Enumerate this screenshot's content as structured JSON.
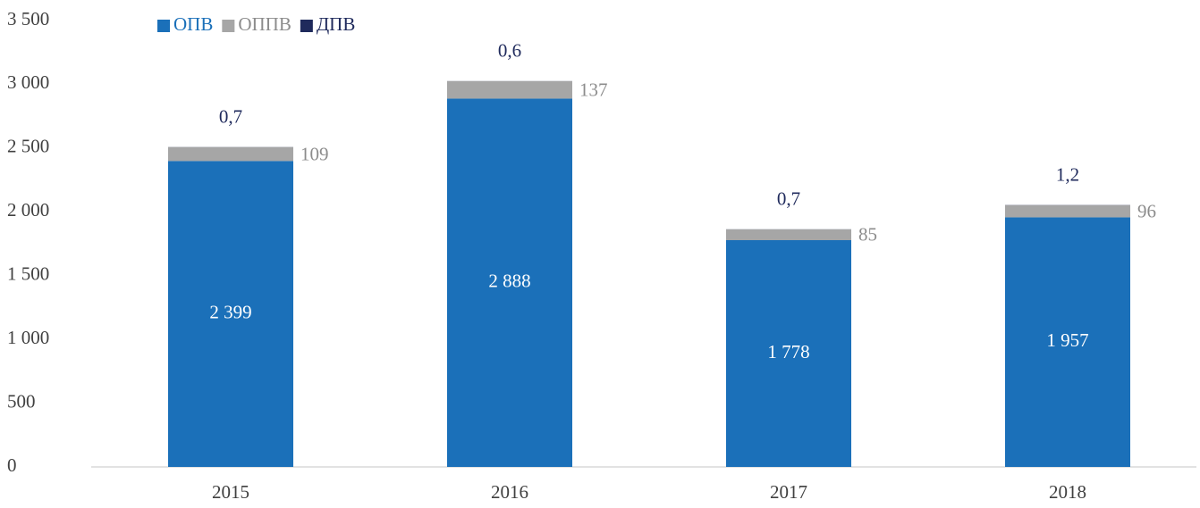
{
  "chart_data": {
    "type": "stacked_bar",
    "categories": [
      "2015",
      "2016",
      "2017",
      "2018"
    ],
    "series": [
      {
        "name": "ОПВ",
        "color": "#1b70b9",
        "values": [
          2399,
          2888,
          1778,
          1957
        ],
        "value_labels": [
          "2 399",
          "2 888",
          "1 778",
          "1 957"
        ]
      },
      {
        "name": "ОППВ",
        "color": "#a6a6a6",
        "values": [
          109,
          137,
          85,
          96
        ]
      },
      {
        "name": "ДПВ",
        "color": "#1f2a5c",
        "values": [
          0.7,
          0.6,
          0.7,
          1.2
        ],
        "value_labels": [
          "0,7",
          "0,6",
          "0,7",
          "1,2"
        ]
      }
    ],
    "ylim": [
      0,
      3500
    ],
    "yticks": [
      0,
      500,
      {
        "value": 1000,
        "label": "1 000"
      },
      {
        "value": 1500,
        "label": "1 500"
      },
      {
        "value": 2000,
        "label": "2 000"
      },
      {
        "value": 2500,
        "label": "2 500"
      },
      {
        "value": 3000,
        "label": "3 000"
      },
      {
        "value": 3500,
        "label": "3 500"
      }
    ],
    "legend": "top-left",
    "grid": false
  }
}
